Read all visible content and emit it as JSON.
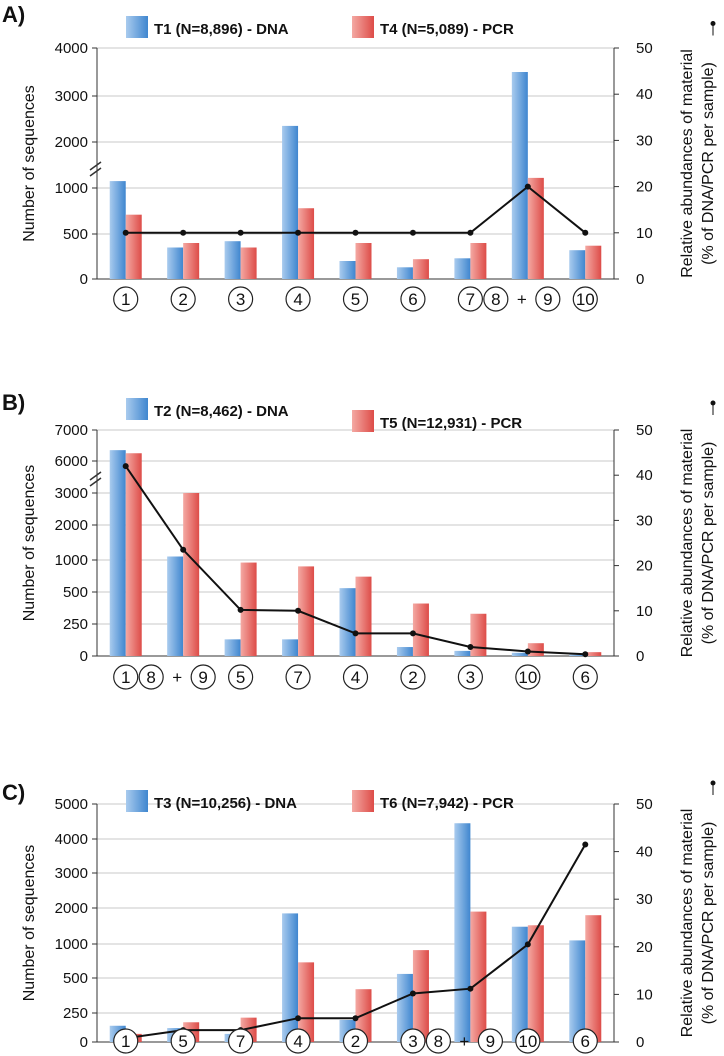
{
  "chart_data": [
    {
      "panel": "A)",
      "type": "bar",
      "categories": [
        "1",
        "2",
        "3",
        "4",
        "5",
        "6",
        "7",
        "8 + 9",
        "10"
      ],
      "series": [
        {
          "name": "T1 (N=8,896) - DNA",
          "color": "#5b9bd5",
          "values": [
            1150,
            350,
            420,
            2350,
            200,
            130,
            230,
            3500,
            320
          ]
        },
        {
          "name": "T4 (N=5,089) - PCR",
          "color": "#e86a66",
          "values": [
            710,
            400,
            350,
            780,
            400,
            220,
            400,
            1220,
            370
          ]
        }
      ],
      "line_series": {
        "values": [
          10,
          10,
          10,
          10,
          10,
          10,
          10,
          20,
          10
        ]
      },
      "ylabel": "Number of sequences",
      "y_ticks": [
        "0",
        "500",
        "1000",
        "2000",
        "3000",
        "4000"
      ],
      "y2label": "Relative abundances of material (% of DNA/PCR per sample)",
      "y2_ticks": [
        "0",
        "10",
        "20",
        "30",
        "40",
        "50"
      ],
      "y2lim": [
        0,
        50
      ],
      "axis_break": true
    },
    {
      "panel": "B)",
      "type": "bar",
      "categories": [
        "1",
        "8 + 9",
        "5",
        "7",
        "4",
        "2",
        "3",
        "10",
        "6"
      ],
      "series": [
        {
          "name": "T2 (N=8,462) - DNA",
          "color": "#5b9bd5",
          "values": [
            6350,
            1100,
            130,
            130,
            560,
            70,
            40,
            25,
            10
          ]
        },
        {
          "name": "T5 (N=12,931) - PCR",
          "color": "#e86a66",
          "values": [
            6250,
            3000,
            960,
            900,
            740,
            410,
            330,
            100,
            30
          ]
        }
      ],
      "line_series": {
        "values": [
          42,
          23.5,
          10.2,
          10,
          5,
          5,
          2,
          1,
          0.4
        ]
      },
      "ylabel": "Number of sequences",
      "y_ticks": [
        "0",
        "250",
        "500",
        "1000",
        "2000",
        "3000",
        "6000",
        "7000"
      ],
      "y2label": "Relative abundances of material (% of DNA/PCR per sample)",
      "y2_ticks": [
        "0",
        "10",
        "20",
        "30",
        "40",
        "50"
      ],
      "y2lim": [
        0,
        50
      ],
      "axis_break": true
    },
    {
      "panel": "C)",
      "type": "bar",
      "categories": [
        "1",
        "5",
        "7",
        "4",
        "2",
        "3",
        "8 + 9",
        "10",
        "6"
      ],
      "series": [
        {
          "name": "T3 (N=10,256) - DNA",
          "color": "#5b9bd5",
          "values": [
            140,
            120,
            70,
            1850,
            190,
            560,
            4450,
            1480,
            1100
          ]
        },
        {
          "name": "T6 (N=7,942) - PCR",
          "color": "#e86a66",
          "values": [
            70,
            170,
            210,
            730,
            420,
            910,
            1900,
            1520,
            1800
          ]
        }
      ],
      "line_series": {
        "values": [
          0.8,
          2.5,
          2.5,
          5,
          5,
          10.2,
          11.2,
          20.5,
          41.5
        ]
      },
      "ylabel": "Number of sequences",
      "y_ticks": [
        "0",
        "250",
        "500",
        "1000",
        "2000",
        "3000",
        "4000",
        "5000"
      ],
      "y2label": "Relative abundances of material (% of DNA/PCR per sample)",
      "y2_ticks": [
        "0",
        "10",
        "20",
        "30",
        "40",
        "50"
      ],
      "y2lim": [
        0,
        50
      ],
      "axis_break": false
    }
  ]
}
